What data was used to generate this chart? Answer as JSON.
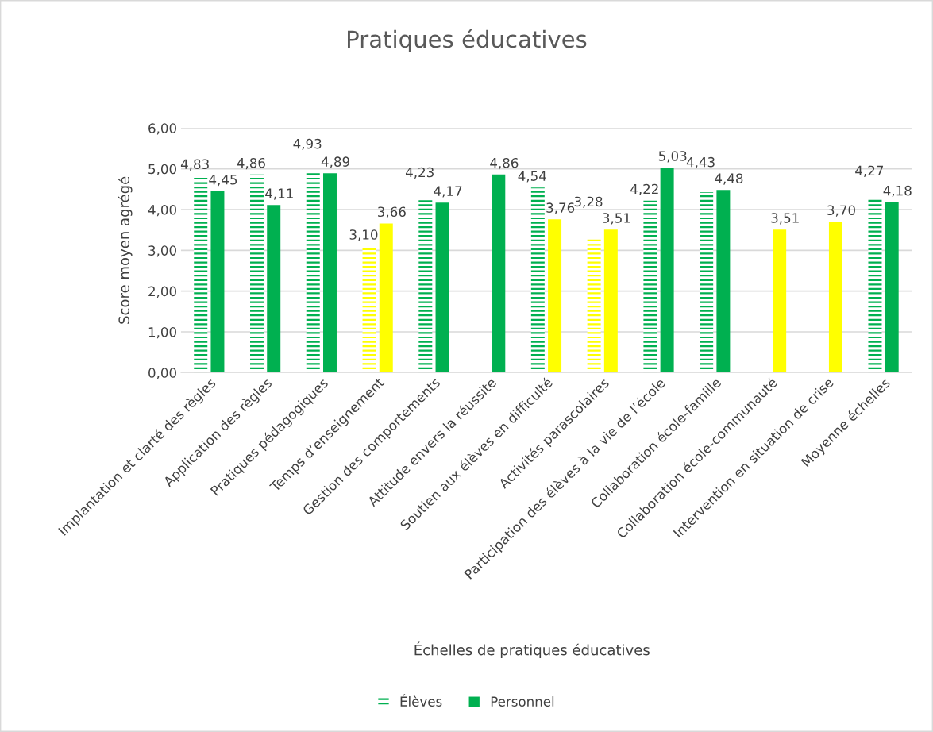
{
  "chart_data": {
    "type": "bar",
    "title": "Pratiques éducatives",
    "xlabel": "Échelles de pratiques éducatives",
    "ylabel": "Score moyen agrégé",
    "categories": [
      "Implantation et clarté des règles",
      "Application des règles",
      "Pratiques pédagogiques",
      "Temps d’enseignement",
      "Gestion des comportements",
      "Attitude envers la réussite",
      "Soutien aux élèves en difficulté",
      "Activités parascolaires",
      "Participation des élèves à la vie de l’école",
      "Collaboration école-famille",
      "Collaboration école-communauté",
      "Intervention en situation de crise",
      "Moyenne échelles"
    ],
    "series": [
      {
        "name": "Élèves",
        "color": "#00b050",
        "values": [
          4.83,
          4.86,
          4.93,
          3.1,
          4.23,
          null,
          4.54,
          3.28,
          4.22,
          4.43,
          null,
          null,
          4.27
        ],
        "value_labels": [
          "4,83",
          "4,86",
          "4,93",
          "3,10",
          "4,23",
          null,
          "4,54",
          "3,28",
          "4,22",
          "4,43",
          null,
          null,
          "4,27"
        ],
        "colors": [
          "#00b050",
          "#00b050",
          "#00b050",
          "#ffff00",
          "#00b050",
          "#00b050",
          "#00b050",
          "#ffff00",
          "#00b050",
          "#00b050",
          "#ffff00",
          "#ffff00",
          "#00b050"
        ]
      },
      {
        "name": "Personnel",
        "color": "#00b050",
        "values": [
          4.45,
          4.11,
          4.89,
          3.66,
          4.17,
          4.86,
          3.76,
          3.51,
          5.03,
          4.48,
          3.51,
          3.7,
          4.18
        ],
        "value_labels": [
          "4,45",
          "4,11",
          "4,89",
          "3,66",
          "4,17",
          "4,86",
          "3,76",
          "3,51",
          "5,03",
          "4,48",
          "3,51",
          "3,70",
          "4,18"
        ],
        "colors": [
          "#00b050",
          "#00b050",
          "#00b050",
          "#ffff00",
          "#00b050",
          "#00b050",
          "#ffff00",
          "#ffff00",
          "#00b050",
          "#00b050",
          "#ffff00",
          "#ffff00",
          "#00b050"
        ]
      }
    ],
    "ylim": [
      0,
      6
    ],
    "yticks": [
      {
        "value": 0,
        "label": "0,00"
      },
      {
        "value": 1,
        "label": "1,00"
      },
      {
        "value": 2,
        "label": "2,00"
      },
      {
        "value": 3,
        "label": "3,00"
      },
      {
        "value": 4,
        "label": "4,00"
      },
      {
        "value": 5,
        "label": "5,00"
      },
      {
        "value": 6,
        "label": "6,00"
      }
    ],
    "grid": "y",
    "legend": "bottom"
  }
}
